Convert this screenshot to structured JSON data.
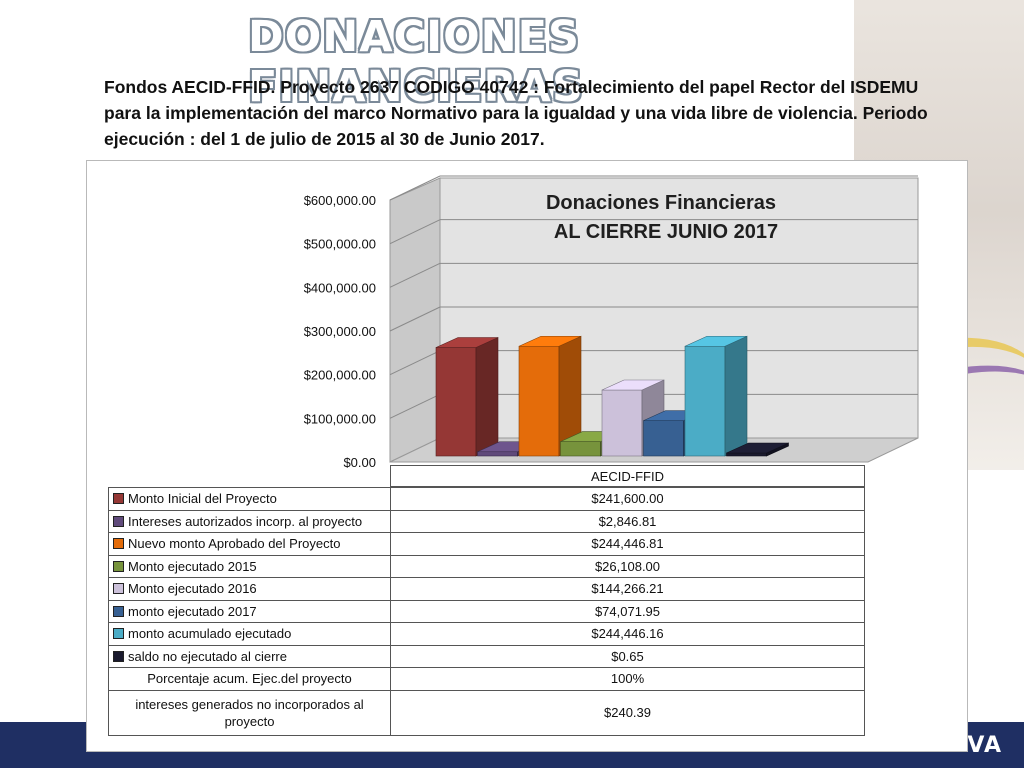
{
  "page": {
    "title": "DONACIONES FINANCIERAS",
    "subtitle": "Fondos AECID-FFID.  Proyecto 2637  CODIGO 40742 : Fortalecimiento del papel Rector del ISDEMU para la implementación del marco Normativo para la igualdad y una vida libre de violencia.  Periodo  ejecución : del 1 de julio de 2015 al 30 de Junio 2017.",
    "footer_text": "TIVA"
  },
  "chart_data": {
    "type": "bar",
    "title_line1": "Donaciones Financieras",
    "title_line2": "AL CIERRE JUNIO 2017",
    "categories": [
      "AECID-FFID"
    ],
    "ylim": [
      0,
      600000
    ],
    "yticks": [
      "$600,000.00",
      "$500,000.00",
      "$400,000.00",
      "$300,000.00",
      "$200,000.00",
      "$100,000.00",
      "$0.00"
    ],
    "grid": true,
    "legend": "table-below",
    "series": [
      {
        "name": "Monto Inicial del Proyecto",
        "values": [
          241600.0
        ],
        "label": "$241,600.00",
        "color": "#953735"
      },
      {
        "name": "Intereses autorizados incorp. al proyecto",
        "values": [
          2846.81
        ],
        "label": "$2,846.81",
        "color": "#604a7b"
      },
      {
        "name": "Nuevo monto Aprobado  del Proyecto",
        "values": [
          244446.81
        ],
        "label": "$244,446.81",
        "color": "#e46c0a"
      },
      {
        "name": "Monto ejecutado 2015",
        "values": [
          26108.0
        ],
        "label": "$26,108.00",
        "color": "#77933c"
      },
      {
        "name": "Monto ejecutado  2016",
        "values": [
          144266.21
        ],
        "label": "$144,266.21",
        "color": "#ccc1da"
      },
      {
        "name": "monto ejecutado 2017",
        "values": [
          74071.95
        ],
        "label": "$74,071.95",
        "color": "#376092"
      },
      {
        "name": "monto acumulado ejecutado",
        "values": [
          244446.16
        ],
        "label": "$244,446.16",
        "color": "#4bacc6"
      },
      {
        "name": "saldo no  ejecutado al cierre",
        "values": [
          0.65
        ],
        "label": "$0.65",
        "color": "#1a1a2e"
      }
    ],
    "extra_rows": [
      {
        "name": "Porcentaje acum. Ejec.del proyecto",
        "label": "100%"
      },
      {
        "name": "intereses generados no incorporados al proyecto",
        "label": "$240.39"
      }
    ]
  }
}
